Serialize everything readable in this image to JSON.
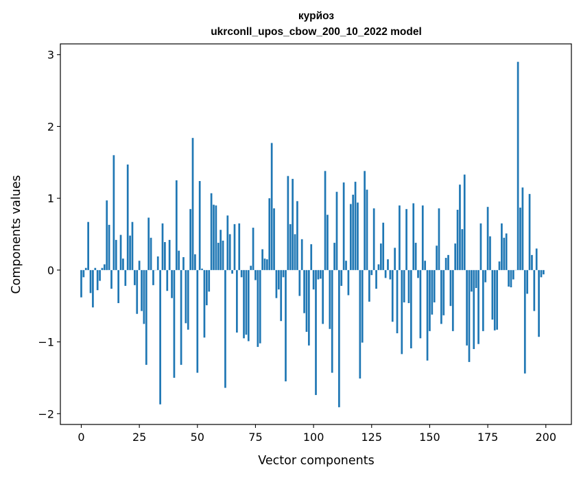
{
  "chart_data": {
    "type": "bar",
    "title_line1": "курйоз",
    "title_line2": "ukrconll_upos_cbow_200_10_2022 model",
    "xlabel": "Vector components",
    "ylabel": "Components values",
    "xlim": [
      -9,
      211
    ],
    "ylim": [
      -2.15,
      3.15
    ],
    "xticks": [
      0,
      25,
      50,
      75,
      100,
      125,
      150,
      175,
      200
    ],
    "xtick_labels": [
      "0",
      "25",
      "50",
      "75",
      "100",
      "125",
      "150",
      "175",
      "200"
    ],
    "yticks": [
      -2,
      -1,
      0,
      1,
      2,
      3
    ],
    "ytick_labels": [
      "−2",
      "−1",
      "0",
      "1",
      "2",
      "3"
    ],
    "bar_color": "#1f77b4",
    "values": [
      -0.38,
      -0.1,
      0.03,
      0.67,
      -0.32,
      -0.52,
      0.03,
      -0.28,
      -0.15,
      0.03,
      0.08,
      0.97,
      0.63,
      -0.26,
      1.6,
      0.42,
      -0.46,
      0.49,
      0.16,
      -0.22,
      1.47,
      0.48,
      0.67,
      -0.21,
      -0.61,
      0.13,
      -0.57,
      -0.75,
      -1.32,
      0.73,
      0.45,
      -0.21,
      0.0,
      0.19,
      -1.87,
      0.65,
      0.39,
      -0.29,
      0.42,
      -0.39,
      -1.5,
      1.25,
      0.27,
      -1.32,
      0.18,
      -0.74,
      -0.83,
      0.85,
      1.84,
      0.22,
      -1.43,
      1.24,
      0.02,
      -0.94,
      -0.49,
      -0.3,
      1.07,
      0.91,
      0.9,
      0.38,
      0.56,
      0.41,
      -1.64,
      0.76,
      0.5,
      -0.05,
      0.64,
      -0.87,
      0.65,
      -0.1,
      -0.95,
      -0.9,
      -0.99,
      0.06,
      0.59,
      -0.14,
      -1.07,
      -1.02,
      0.29,
      0.16,
      0.15,
      1.0,
      1.77,
      0.86,
      -0.39,
      -0.27,
      -0.71,
      -0.1,
      -1.55,
      1.31,
      0.64,
      1.27,
      0.5,
      0.96,
      -0.36,
      0.43,
      -0.6,
      -0.86,
      -1.05,
      0.36,
      -0.27,
      -1.74,
      -0.13,
      -0.12,
      -0.75,
      1.38,
      0.77,
      -0.82,
      -1.43,
      0.38,
      1.09,
      -1.91,
      -0.22,
      1.22,
      0.13,
      -0.35,
      0.92,
      1.05,
      1.23,
      0.94,
      -1.51,
      -1.01,
      1.38,
      1.12,
      -0.44,
      -0.07,
      0.86,
      -0.26,
      0.08,
      0.37,
      0.66,
      -0.11,
      0.15,
      -0.13,
      -0.72,
      0.31,
      -0.88,
      0.9,
      -1.17,
      -0.45,
      0.85,
      -0.46,
      -1.09,
      0.93,
      0.38,
      -0.11,
      -0.95,
      0.9,
      0.13,
      -1.26,
      -0.85,
      -0.62,
      -0.45,
      0.34,
      0.86,
      -0.75,
      -0.63,
      0.17,
      0.21,
      -0.5,
      -0.85,
      0.37,
      0.84,
      1.19,
      0.57,
      1.33,
      -1.05,
      -1.28,
      -0.3,
      -1.1,
      -0.25,
      -1.03,
      0.65,
      -0.85,
      -0.17,
      0.88,
      0.47,
      -0.69,
      -0.84,
      -0.83,
      0.12,
      0.65,
      0.45,
      0.51,
      -0.23,
      -0.24,
      -0.13,
      0.0,
      2.9,
      0.87,
      1.15,
      -1.44,
      -0.33,
      1.06,
      0.21,
      -0.57,
      0.3,
      -0.93,
      -0.1,
      -0.06
    ]
  }
}
